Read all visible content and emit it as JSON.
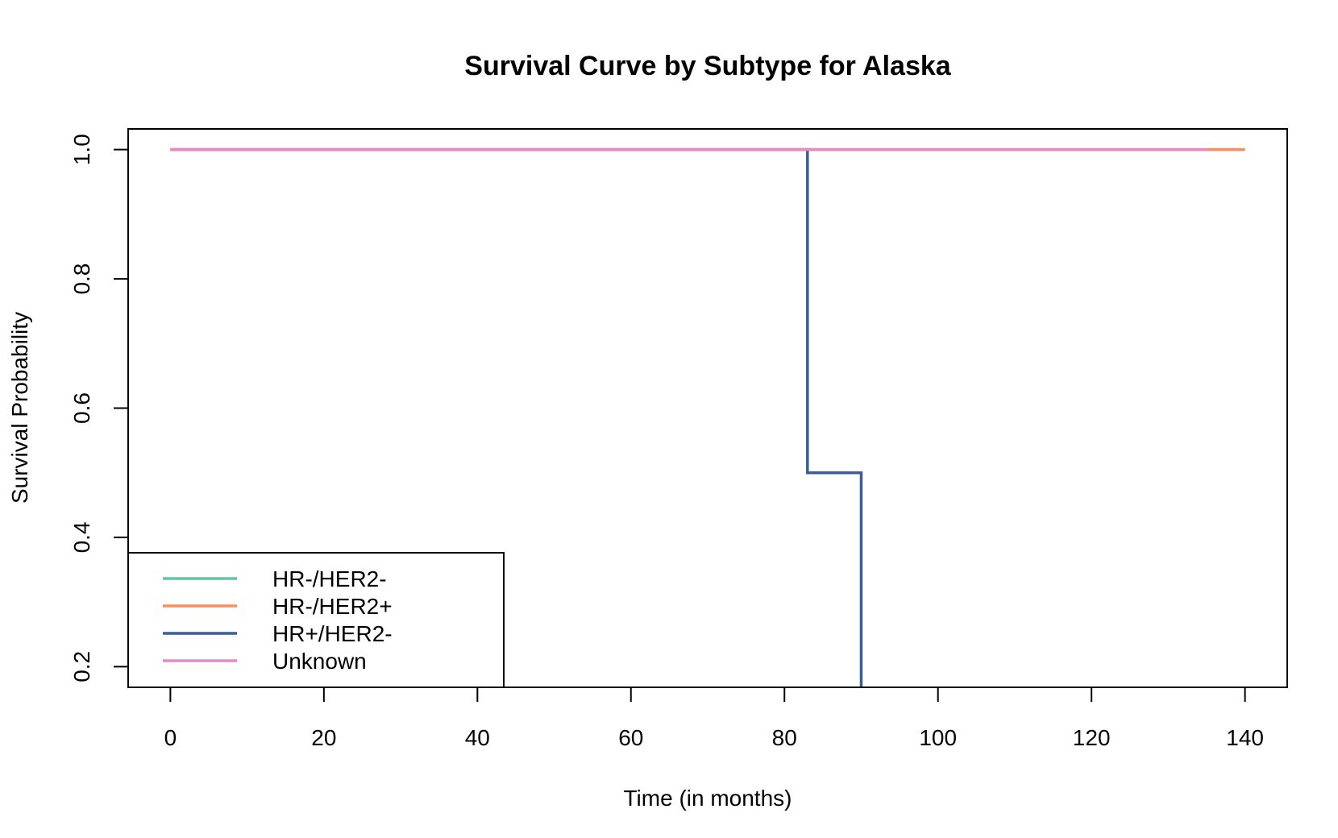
{
  "chart_data": {
    "type": "line",
    "step": true,
    "title": "Survival Curve by Subtype for Alaska",
    "xlabel": "Time (in months)",
    "ylabel": "Survival Probability",
    "xlim": [
      -5.5,
      145.5
    ],
    "ylim": [
      0.168,
      1.032
    ],
    "xticks": [
      0,
      20,
      40,
      60,
      80,
      100,
      120,
      140
    ],
    "yticks": [
      0.2,
      0.4,
      0.6,
      0.8,
      1.0
    ],
    "ytick_labels": [
      "0.2",
      "0.4",
      "0.6",
      "0.8",
      "1.0"
    ],
    "grid": false,
    "legend_position": "bottom-left",
    "series": [
      {
        "name": "HR-/HER2-",
        "color": "#66c2a5",
        "x": [
          0,
          140
        ],
        "y": [
          1.0,
          1.0
        ]
      },
      {
        "name": "HR-/HER2+",
        "color": "#fc8d62",
        "x": [
          0,
          140
        ],
        "y": [
          1.0,
          1.0
        ]
      },
      {
        "name": "HR+/HER2-",
        "color": "#3b5f94",
        "x": [
          0,
          83,
          90
        ],
        "y": [
          1.0,
          0.5,
          0.0
        ]
      },
      {
        "name": "Unknown",
        "color": "#e78ac3",
        "x": [
          0,
          135
        ],
        "y": [
          1.0,
          1.0
        ]
      }
    ]
  }
}
